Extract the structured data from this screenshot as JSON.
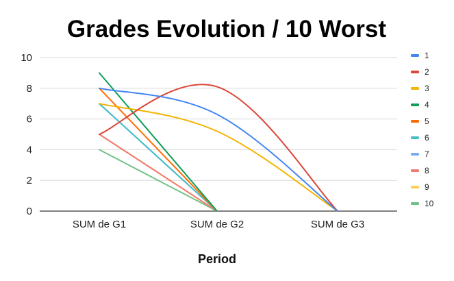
{
  "chart_data": {
    "type": "line",
    "title": "Grades Evolution / 10 Worst",
    "xlabel": "Period",
    "ylabel": "",
    "categories": [
      "SUM de G1",
      "SUM de G2",
      "SUM de G3"
    ],
    "ylim": [
      0,
      10
    ],
    "yticks": [
      0,
      2,
      4,
      6,
      8,
      10
    ],
    "grid": true,
    "smooth": true,
    "legend_position": "right",
    "series": [
      {
        "name": "1",
        "color": "#4285f4",
        "values": [
          8,
          6.3,
          0
        ]
      },
      {
        "name": "2",
        "color": "#db4437",
        "values": [
          5,
          8.1,
          0
        ]
      },
      {
        "name": "3",
        "color": "#f4b400",
        "values": [
          7,
          5.2,
          0
        ]
      },
      {
        "name": "4",
        "color": "#0f9d58",
        "values": [
          9,
          0,
          null
        ]
      },
      {
        "name": "5",
        "color": "#ff6d01",
        "values": [
          8,
          0,
          null
        ]
      },
      {
        "name": "6",
        "color": "#46bdc6",
        "values": [
          7,
          0,
          null
        ]
      },
      {
        "name": "7",
        "color": "#7baaf7",
        "values": [
          7,
          0,
          null
        ]
      },
      {
        "name": "8",
        "color": "#f07b72",
        "values": [
          5,
          0,
          null
        ]
      },
      {
        "name": "9",
        "color": "#fcd04f",
        "values": [
          5,
          0,
          null
        ]
      },
      {
        "name": "10",
        "color": "#71c287",
        "values": [
          4,
          0,
          null
        ]
      }
    ]
  }
}
